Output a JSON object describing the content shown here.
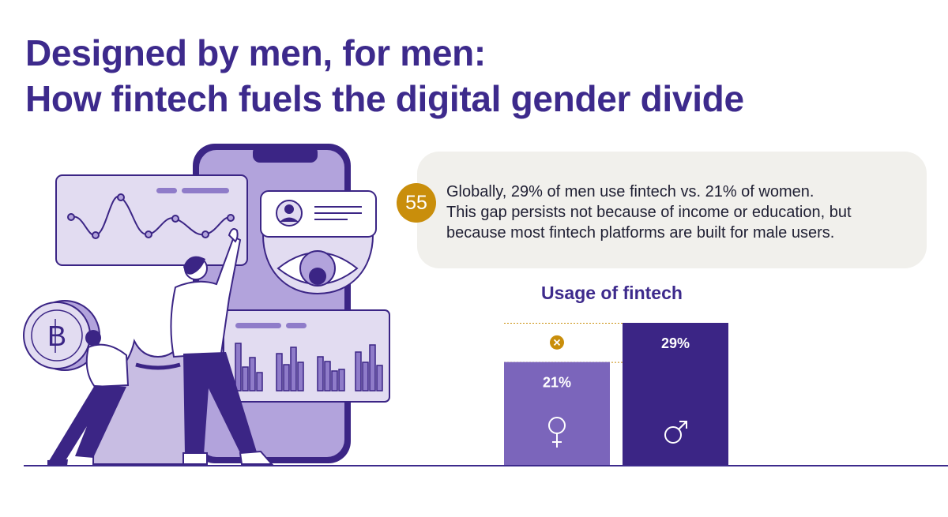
{
  "title": {
    "line1": "Designed by men, for men:",
    "line2": "How fintech fuels the digital gender divide"
  },
  "callout": {
    "badge": "55",
    "lines": [
      "Globally, 29% of men use fintech vs. 21% of women.",
      "This gap persists not because of income or education, but",
      "because most fintech platforms are built for male users."
    ]
  },
  "colors": {
    "title": "#3d2a8c",
    "women_bar": "#7b65bb",
    "men_bar": "#3b2585",
    "badge": "#c98e0b",
    "callout_bg": "#f1f0ec",
    "illustration_fill": "#c8bde3",
    "illustration_dark": "#3b2585"
  },
  "chart_data": {
    "type": "bar",
    "title": "Usage of fintech",
    "categories": [
      "women",
      "men"
    ],
    "values": [
      21,
      29
    ],
    "value_labels": [
      "21%",
      "29%"
    ],
    "symbols": [
      "female-symbol-icon",
      "male-symbol-icon"
    ],
    "gap_marker": "x-icon",
    "ylim": [
      0,
      29
    ],
    "xlabel": "",
    "ylabel": ""
  },
  "illustration": {
    "icons": [
      "smartphone-icon",
      "line-chart-card-icon",
      "profile-card-icon",
      "eye-icon",
      "bar-chart-card-icon",
      "bitcoin-coin-icon",
      "money-bag-icon",
      "person-pointing-icon",
      "person-carrying-coin-icon"
    ]
  }
}
